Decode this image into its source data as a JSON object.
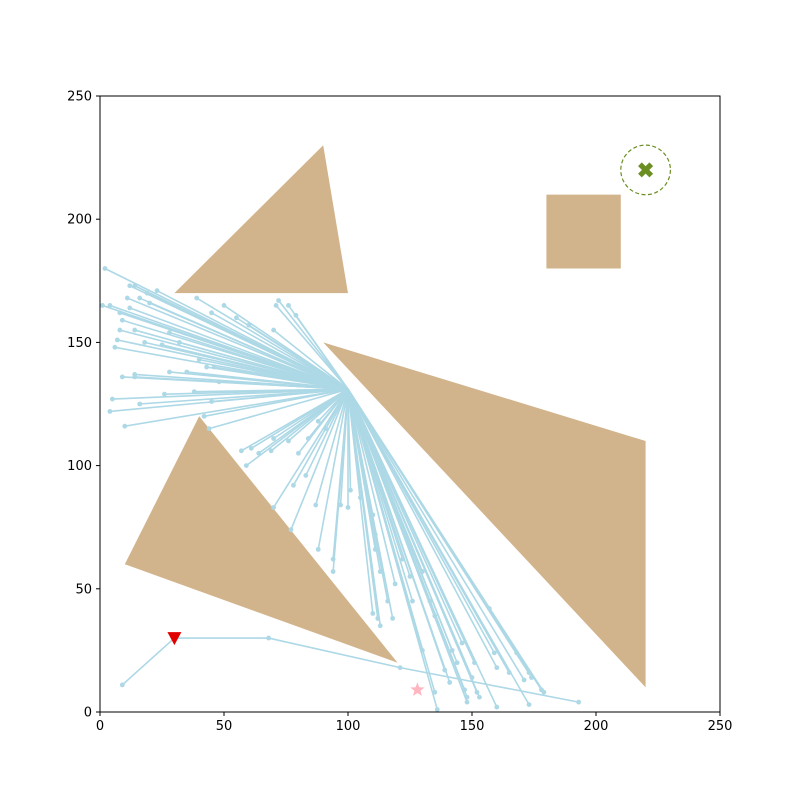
{
  "chart_data": {
    "type": "scatter",
    "title": "",
    "xlabel": "",
    "ylabel": "",
    "xlim": [
      0,
      250
    ],
    "ylim": [
      0,
      250
    ],
    "xticks": [
      0,
      50,
      100,
      150,
      200,
      250
    ],
    "yticks": [
      0,
      50,
      100,
      150,
      200,
      250
    ],
    "grid": false,
    "colors": {
      "obstacle": "#d2b48c",
      "tree": "#add8e6",
      "path": "#add8e6",
      "start": "#e00000",
      "goal": "#6b8e23",
      "sample": "#ffb6c1"
    },
    "obstacles": [
      {
        "name": "upper-triangle",
        "points": [
          [
            30,
            170
          ],
          [
            90,
            230
          ],
          [
            100,
            170
          ]
        ]
      },
      {
        "name": "square",
        "points": [
          [
            180,
            180
          ],
          [
            210,
            180
          ],
          [
            210,
            210
          ],
          [
            180,
            210
          ]
        ]
      },
      {
        "name": "large-triangle",
        "points": [
          [
            90,
            150
          ],
          [
            220,
            110
          ],
          [
            220,
            10
          ]
        ]
      },
      {
        "name": "left-triangle",
        "points": [
          [
            10,
            60
          ],
          [
            40,
            120
          ],
          [
            120,
            20
          ]
        ]
      }
    ],
    "start": {
      "x": 30,
      "y": 30,
      "marker": "triangle-down"
    },
    "goal": {
      "x": 220,
      "y": 220,
      "radius": 10,
      "marker": "x"
    },
    "sample_point": {
      "x": 128,
      "y": 9,
      "marker": "star"
    },
    "path": [
      [
        30,
        30
      ],
      [
        68,
        30
      ],
      [
        121,
        18
      ],
      [
        193,
        4
      ]
    ],
    "extra_edges": [
      [
        [
          30,
          30
        ],
        [
          9,
          11
        ]
      ]
    ],
    "tree_hub": [
      100,
      131
    ],
    "tree_leaves": [
      [
        2,
        180
      ],
      [
        1,
        165
      ],
      [
        4,
        165
      ],
      [
        11,
        168
      ],
      [
        12,
        173
      ],
      [
        14,
        173
      ],
      [
        16,
        168
      ],
      [
        19,
        170
      ],
      [
        20,
        166
      ],
      [
        23,
        171
      ],
      [
        8,
        162
      ],
      [
        12,
        164
      ],
      [
        9,
        159
      ],
      [
        8,
        155
      ],
      [
        14,
        155
      ],
      [
        7,
        151
      ],
      [
        6,
        148
      ],
      [
        18,
        150
      ],
      [
        28,
        154
      ],
      [
        25,
        149
      ],
      [
        32,
        150
      ],
      [
        39,
        168
      ],
      [
        45,
        162
      ],
      [
        50,
        165
      ],
      [
        55,
        160
      ],
      [
        60,
        157
      ],
      [
        70,
        155
      ],
      [
        72,
        167
      ],
      [
        71,
        165
      ],
      [
        76,
        165
      ],
      [
        79,
        161
      ],
      [
        9,
        136
      ],
      [
        14,
        137
      ],
      [
        14,
        136
      ],
      [
        28,
        138
      ],
      [
        35,
        138
      ],
      [
        40,
        143
      ],
      [
        43,
        140
      ],
      [
        46,
        140
      ],
      [
        48,
        134
      ],
      [
        5,
        127
      ],
      [
        4,
        122
      ],
      [
        16,
        125
      ],
      [
        26,
        129
      ],
      [
        38,
        130
      ],
      [
        45,
        126
      ],
      [
        10,
        116
      ],
      [
        44,
        115
      ],
      [
        42,
        120
      ],
      [
        57,
        106
      ],
      [
        59,
        100
      ],
      [
        61,
        107
      ],
      [
        64,
        105
      ],
      [
        69,
        106
      ],
      [
        70,
        111
      ],
      [
        76,
        110
      ],
      [
        80,
        105
      ],
      [
        84,
        111
      ],
      [
        88,
        118
      ],
      [
        91,
        115
      ],
      [
        70,
        83
      ],
      [
        77,
        74
      ],
      [
        78,
        92
      ],
      [
        83,
        96
      ],
      [
        87,
        84
      ],
      [
        88,
        66
      ],
      [
        94,
        62
      ],
      [
        94,
        57
      ],
      [
        101,
        90
      ],
      [
        97,
        84
      ],
      [
        100,
        83
      ],
      [
        105,
        87
      ],
      [
        110,
        80
      ],
      [
        111,
        72
      ],
      [
        111,
        66
      ],
      [
        113,
        57
      ],
      [
        116,
        45
      ],
      [
        110,
        40
      ],
      [
        112,
        38
      ],
      [
        113,
        35
      ],
      [
        118,
        38
      ],
      [
        119,
        52
      ],
      [
        122,
        62
      ],
      [
        125,
        55
      ],
      [
        130,
        25
      ],
      [
        126,
        45
      ],
      [
        130,
        57
      ],
      [
        133,
        45
      ],
      [
        135,
        39
      ],
      [
        135,
        8
      ],
      [
        136,
        1
      ],
      [
        139,
        17
      ],
      [
        141,
        12
      ],
      [
        142,
        25
      ],
      [
        144,
        20
      ],
      [
        146,
        28
      ],
      [
        147,
        9
      ],
      [
        148,
        6
      ],
      [
        148,
        4
      ],
      [
        150,
        14
      ],
      [
        151,
        20
      ],
      [
        152,
        8
      ],
      [
        153,
        6
      ],
      [
        160,
        2
      ],
      [
        157,
        42
      ],
      [
        159,
        24
      ],
      [
        160,
        18
      ],
      [
        165,
        16
      ],
      [
        168,
        24
      ],
      [
        171,
        13
      ],
      [
        173,
        3
      ],
      [
        173,
        16
      ],
      [
        174,
        14
      ],
      [
        178,
        9
      ],
      [
        179,
        8
      ]
    ]
  }
}
